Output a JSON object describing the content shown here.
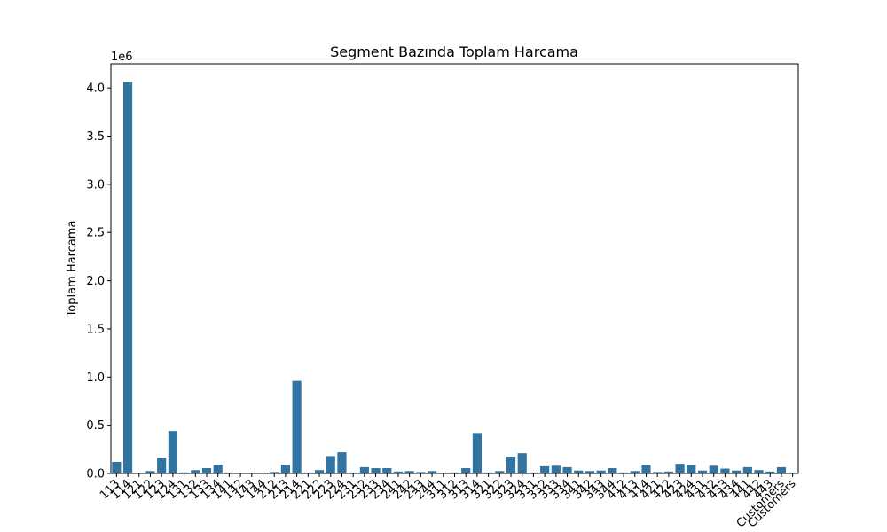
{
  "chart_data": {
    "type": "bar",
    "title": "Segment Bazında Toplam Harcama",
    "xlabel": "",
    "ylabel": "Toplam Harcama",
    "scale_label": "1e6",
    "ylim": [
      0,
      4250000
    ],
    "yticks": [
      0,
      500000,
      1000000,
      1500000,
      2000000,
      2500000,
      3000000,
      3500000,
      4000000
    ],
    "ytick_labels": [
      "0.0",
      "0.5",
      "1.0",
      "1.5",
      "2.0",
      "2.5",
      "3.0",
      "3.5",
      "4.0"
    ],
    "grid": false,
    "categories": [
      "113",
      "114",
      "121",
      "122",
      "123",
      "124",
      "131",
      "132",
      "133",
      "134",
      "141",
      "142",
      "143",
      "144",
      "212",
      "213",
      "214",
      "221",
      "222",
      "223",
      "224",
      "231",
      "232",
      "233",
      "234",
      "241",
      "242",
      "243",
      "244",
      "311",
      "312",
      "313",
      "314",
      "321",
      "322",
      "323",
      "324",
      "331",
      "332",
      "333",
      "334",
      "341",
      "342",
      "343",
      "344",
      "412",
      "413",
      "414",
      "421",
      "422",
      "423",
      "424",
      "431",
      "432",
      "433",
      "434",
      "441",
      "442",
      "443",
      "Customers",
      "Customers"
    ],
    "values": [
      120000,
      4060000,
      5000,
      25000,
      165000,
      440000,
      10000,
      35000,
      55000,
      90000,
      10000,
      5000,
      5000,
      5000,
      15000,
      90000,
      960000,
      10000,
      35000,
      180000,
      220000,
      10000,
      65000,
      55000,
      55000,
      20000,
      25000,
      15000,
      25000,
      5000,
      10000,
      55000,
      420000,
      10000,
      25000,
      175000,
      210000,
      10000,
      75000,
      80000,
      65000,
      30000,
      25000,
      30000,
      55000,
      10000,
      25000,
      90000,
      15000,
      20000,
      100000,
      90000,
      30000,
      80000,
      50000,
      30000,
      65000,
      35000,
      20000,
      65000,
      10000
    ]
  }
}
